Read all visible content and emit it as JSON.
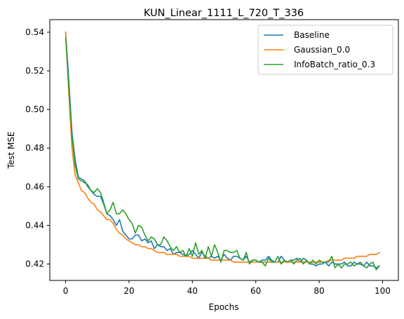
{
  "chart_data": {
    "type": "line",
    "title": "KUN_Linear_1111_L_720_T_336",
    "xlabel": "Epochs",
    "ylabel": "Test MSE",
    "xlim": [
      -5,
      105
    ],
    "ylim": [
      0.4115,
      0.5465
    ],
    "xticks": [
      0,
      20,
      40,
      60,
      80,
      100
    ],
    "yticks": [
      0.42,
      0.44,
      0.46,
      0.48,
      0.5,
      0.52,
      0.54
    ],
    "ytick_labels": [
      "0.42",
      "0.44",
      "0.46",
      "0.48",
      "0.50",
      "0.52",
      "0.54"
    ],
    "grid": false,
    "legend_position": "top-right",
    "x": [
      0,
      1,
      2,
      3,
      4,
      5,
      6,
      7,
      8,
      9,
      10,
      11,
      12,
      13,
      14,
      15,
      16,
      17,
      18,
      19,
      20,
      21,
      22,
      23,
      24,
      25,
      26,
      27,
      28,
      29,
      30,
      31,
      32,
      33,
      34,
      35,
      36,
      37,
      38,
      39,
      40,
      41,
      42,
      43,
      44,
      45,
      46,
      47,
      48,
      49,
      50,
      51,
      52,
      53,
      54,
      55,
      56,
      57,
      58,
      59,
      60,
      61,
      62,
      63,
      64,
      65,
      66,
      67,
      68,
      69,
      70,
      71,
      72,
      73,
      74,
      75,
      76,
      77,
      78,
      79,
      80,
      81,
      82,
      83,
      84,
      85,
      86,
      87,
      88,
      89,
      90,
      91,
      92,
      93,
      94,
      95,
      96,
      97,
      98,
      99
    ],
    "series": [
      {
        "name": "Baseline",
        "color": "#1f77b4",
        "values": [
          0.54,
          0.515,
          0.488,
          0.474,
          0.465,
          0.464,
          0.463,
          0.46,
          0.458,
          0.456,
          0.455,
          0.455,
          0.451,
          0.446,
          0.445,
          0.443,
          0.44,
          0.443,
          0.437,
          0.435,
          0.433,
          0.433,
          0.435,
          0.435,
          0.432,
          0.433,
          0.431,
          0.432,
          0.428,
          0.43,
          0.429,
          0.429,
          0.427,
          0.428,
          0.425,
          0.426,
          0.426,
          0.425,
          0.424,
          0.425,
          0.427,
          0.425,
          0.423,
          0.426,
          0.424,
          0.423,
          0.424,
          0.423,
          0.424,
          0.422,
          0.425,
          0.423,
          0.422,
          0.424,
          0.424,
          0.423,
          0.422,
          0.424,
          0.421,
          0.422,
          0.422,
          0.421,
          0.422,
          0.422,
          0.424,
          0.422,
          0.421,
          0.421,
          0.424,
          0.422,
          0.421,
          0.422,
          0.422,
          0.423,
          0.421,
          0.423,
          0.422,
          0.42,
          0.42,
          0.419,
          0.42,
          0.42,
          0.421,
          0.419,
          0.421,
          0.42,
          0.42,
          0.42,
          0.421,
          0.419,
          0.419,
          0.421,
          0.42,
          0.42,
          0.419,
          0.421,
          0.419,
          0.419,
          0.418,
          0.419
        ]
      },
      {
        "name": "Gaussian_0.0",
        "color": "#ff7f0e",
        "values": [
          0.54,
          0.508,
          0.48,
          0.466,
          0.462,
          0.458,
          0.457,
          0.454,
          0.452,
          0.451,
          0.448,
          0.447,
          0.445,
          0.443,
          0.443,
          0.441,
          0.438,
          0.436,
          0.435,
          0.433,
          0.432,
          0.431,
          0.43,
          0.43,
          0.429,
          0.429,
          0.428,
          0.428,
          0.427,
          0.426,
          0.426,
          0.426,
          0.425,
          0.425,
          0.425,
          0.425,
          0.424,
          0.424,
          0.424,
          0.424,
          0.423,
          0.423,
          0.423,
          0.423,
          0.423,
          0.423,
          0.422,
          0.422,
          0.422,
          0.422,
          0.422,
          0.422,
          0.422,
          0.421,
          0.421,
          0.421,
          0.421,
          0.421,
          0.421,
          0.421,
          0.421,
          0.421,
          0.421,
          0.421,
          0.421,
          0.421,
          0.421,
          0.421,
          0.421,
          0.421,
          0.421,
          0.421,
          0.421,
          0.421,
          0.421,
          0.421,
          0.421,
          0.421,
          0.421,
          0.421,
          0.421,
          0.421,
          0.421,
          0.422,
          0.422,
          0.422,
          0.422,
          0.422,
          0.423,
          0.423,
          0.423,
          0.423,
          0.424,
          0.424,
          0.424,
          0.424,
          0.425,
          0.425,
          0.425,
          0.426
        ]
      },
      {
        "name": "InfoBatch_ratio_0.3",
        "color": "#2ca02c",
        "values": [
          0.537,
          0.512,
          0.486,
          0.471,
          0.464,
          0.463,
          0.462,
          0.461,
          0.458,
          0.457,
          0.459,
          0.457,
          0.452,
          0.446,
          0.448,
          0.452,
          0.446,
          0.446,
          0.448,
          0.446,
          0.443,
          0.441,
          0.436,
          0.44,
          0.439,
          0.435,
          0.432,
          0.434,
          0.433,
          0.43,
          0.43,
          0.434,
          0.432,
          0.429,
          0.427,
          0.429,
          0.426,
          0.427,
          0.424,
          0.428,
          0.424,
          0.431,
          0.425,
          0.427,
          0.423,
          0.429,
          0.424,
          0.43,
          0.426,
          0.421,
          0.427,
          0.427,
          0.426,
          0.426,
          0.427,
          0.423,
          0.422,
          0.426,
          0.42,
          0.422,
          0.422,
          0.421,
          0.421,
          0.419,
          0.423,
          0.421,
          0.421,
          0.424,
          0.42,
          0.422,
          0.421,
          0.422,
          0.42,
          0.422,
          0.423,
          0.42,
          0.422,
          0.42,
          0.422,
          0.42,
          0.422,
          0.421,
          0.421,
          0.421,
          0.424,
          0.418,
          0.42,
          0.418,
          0.42,
          0.42,
          0.421,
          0.419,
          0.42,
          0.421,
          0.419,
          0.418,
          0.42,
          0.421,
          0.417,
          0.419
        ]
      }
    ]
  }
}
